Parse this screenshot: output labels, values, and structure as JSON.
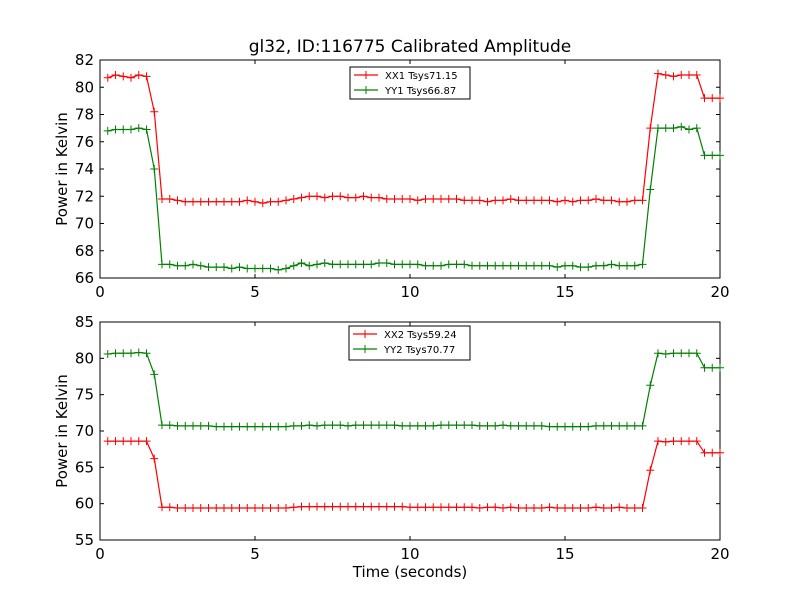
{
  "figure": {
    "title": "gl32, ID:116775 Calibrated Amplitude"
  },
  "chart_data": [
    {
      "type": "line",
      "title": "gl32, ID:116775 Calibrated Amplitude",
      "xlabel": "",
      "ylabel": "Power in Kelvin",
      "xlim": [
        0,
        20
      ],
      "ylim": [
        66,
        82
      ],
      "xticks": [
        "0",
        "5",
        "10",
        "15",
        "20"
      ],
      "yticks": [
        "66",
        "68",
        "70",
        "72",
        "74",
        "76",
        "78",
        "80",
        "82"
      ],
      "grid": false,
      "legend_position": "top-center",
      "x": [
        0.25,
        0.5,
        0.75,
        1.0,
        1.25,
        1.5,
        1.75,
        2.0,
        2.25,
        2.5,
        2.75,
        3.0,
        3.25,
        3.5,
        3.75,
        4.0,
        4.25,
        4.5,
        4.75,
        5.0,
        5.25,
        5.5,
        5.75,
        6.0,
        6.25,
        6.5,
        6.75,
        7.0,
        7.25,
        7.5,
        7.75,
        8.0,
        8.25,
        8.5,
        8.75,
        9.0,
        9.25,
        9.5,
        9.75,
        10.0,
        10.25,
        10.5,
        10.75,
        11.0,
        11.25,
        11.5,
        11.75,
        12.0,
        12.25,
        12.5,
        12.75,
        13.0,
        13.25,
        13.5,
        13.75,
        14.0,
        14.25,
        14.5,
        14.75,
        15.0,
        15.25,
        15.5,
        15.75,
        16.0,
        16.25,
        16.5,
        16.75,
        17.0,
        17.25,
        17.5,
        17.75,
        18.0,
        18.25,
        18.5,
        18.75,
        19.0,
        19.25,
        19.5,
        19.75,
        20.0
      ],
      "series": [
        {
          "name": "XX1 Tsys71.15",
          "color": "#ff0000",
          "values": [
            80.7,
            80.9,
            80.8,
            80.7,
            80.9,
            80.8,
            78.2,
            71.8,
            71.8,
            71.7,
            71.6,
            71.6,
            71.6,
            71.6,
            71.6,
            71.6,
            71.6,
            71.6,
            71.7,
            71.6,
            71.5,
            71.6,
            71.6,
            71.7,
            71.8,
            71.9,
            72.0,
            72.0,
            71.9,
            72.0,
            72.0,
            71.9,
            71.9,
            72.0,
            71.9,
            71.9,
            71.8,
            71.8,
            71.8,
            71.8,
            71.7,
            71.8,
            71.8,
            71.8,
            71.8,
            71.8,
            71.7,
            71.7,
            71.7,
            71.6,
            71.7,
            71.7,
            71.8,
            71.7,
            71.7,
            71.7,
            71.7,
            71.7,
            71.6,
            71.7,
            71.6,
            71.7,
            71.7,
            71.8,
            71.7,
            71.7,
            71.6,
            71.6,
            71.7,
            71.7,
            77.0,
            81.0,
            80.9,
            80.8,
            80.9,
            80.9,
            80.9,
            79.2,
            79.2,
            79.2
          ]
        },
        {
          "name": "YY1 Tsys66.87",
          "color": "#008000",
          "values": [
            76.8,
            76.9,
            76.9,
            76.9,
            77.0,
            76.9,
            74.0,
            67.0,
            67.0,
            66.9,
            66.9,
            67.0,
            66.9,
            66.8,
            66.8,
            66.8,
            66.7,
            66.8,
            66.7,
            66.7,
            66.7,
            66.7,
            66.6,
            66.7,
            66.9,
            67.1,
            66.9,
            67.0,
            67.1,
            67.0,
            67.0,
            67.0,
            67.0,
            67.0,
            67.0,
            67.1,
            67.1,
            67.0,
            67.0,
            67.0,
            67.0,
            66.9,
            66.9,
            66.9,
            67.0,
            67.0,
            67.0,
            66.9,
            66.9,
            66.9,
            66.9,
            66.9,
            66.9,
            66.9,
            66.9,
            66.9,
            66.9,
            66.9,
            66.8,
            66.9,
            66.9,
            66.8,
            66.8,
            66.9,
            66.9,
            67.0,
            66.9,
            66.9,
            66.9,
            67.0,
            72.5,
            77.0,
            77.0,
            77.0,
            77.1,
            76.9,
            77.0,
            75.0,
            75.0,
            75.0
          ]
        }
      ]
    },
    {
      "type": "line",
      "title": "",
      "xlabel": "Time (seconds)",
      "ylabel": "Power in Kelvin",
      "xlim": [
        0,
        20
      ],
      "ylim": [
        55,
        85
      ],
      "xticks": [
        "0",
        "5",
        "10",
        "15",
        "20"
      ],
      "yticks": [
        "55",
        "60",
        "65",
        "70",
        "75",
        "80",
        "85"
      ],
      "grid": false,
      "legend_position": "top-center",
      "x": [
        0.25,
        0.5,
        0.75,
        1.0,
        1.25,
        1.5,
        1.75,
        2.0,
        2.25,
        2.5,
        2.75,
        3.0,
        3.25,
        3.5,
        3.75,
        4.0,
        4.25,
        4.5,
        4.75,
        5.0,
        5.25,
        5.5,
        5.75,
        6.0,
        6.25,
        6.5,
        6.75,
        7.0,
        7.25,
        7.5,
        7.75,
        8.0,
        8.25,
        8.5,
        8.75,
        9.0,
        9.25,
        9.5,
        9.75,
        10.0,
        10.25,
        10.5,
        10.75,
        11.0,
        11.25,
        11.5,
        11.75,
        12.0,
        12.25,
        12.5,
        12.75,
        13.0,
        13.25,
        13.5,
        13.75,
        14.0,
        14.25,
        14.5,
        14.75,
        15.0,
        15.25,
        15.5,
        15.75,
        16.0,
        16.25,
        16.5,
        16.75,
        17.0,
        17.25,
        17.5,
        17.75,
        18.0,
        18.25,
        18.5,
        18.75,
        19.0,
        19.25,
        19.5,
        19.75,
        20.0
      ],
      "series": [
        {
          "name": "XX2 Tsys59.24",
          "color": "#ff0000",
          "values": [
            68.6,
            68.6,
            68.6,
            68.6,
            68.6,
            68.6,
            66.2,
            59.5,
            59.5,
            59.4,
            59.4,
            59.4,
            59.4,
            59.4,
            59.4,
            59.4,
            59.4,
            59.4,
            59.4,
            59.4,
            59.4,
            59.4,
            59.4,
            59.4,
            59.5,
            59.6,
            59.6,
            59.6,
            59.6,
            59.6,
            59.6,
            59.6,
            59.6,
            59.6,
            59.6,
            59.6,
            59.6,
            59.6,
            59.6,
            59.5,
            59.5,
            59.5,
            59.5,
            59.5,
            59.5,
            59.5,
            59.5,
            59.5,
            59.4,
            59.5,
            59.5,
            59.4,
            59.5,
            59.4,
            59.4,
            59.4,
            59.4,
            59.5,
            59.4,
            59.4,
            59.4,
            59.4,
            59.4,
            59.5,
            59.4,
            59.4,
            59.5,
            59.4,
            59.4,
            59.4,
            64.6,
            68.6,
            68.5,
            68.6,
            68.6,
            68.6,
            68.6,
            67.0,
            67.0,
            67.0
          ]
        },
        {
          "name": "YY2 Tsys70.77",
          "color": "#008000",
          "values": [
            80.6,
            80.7,
            80.7,
            80.7,
            80.8,
            80.7,
            77.8,
            70.8,
            70.8,
            70.7,
            70.7,
            70.7,
            70.7,
            70.7,
            70.6,
            70.6,
            70.6,
            70.6,
            70.6,
            70.6,
            70.6,
            70.6,
            70.6,
            70.6,
            70.7,
            70.7,
            70.8,
            70.7,
            70.8,
            70.8,
            70.8,
            70.7,
            70.8,
            70.8,
            70.8,
            70.8,
            70.8,
            70.8,
            70.7,
            70.7,
            70.7,
            70.7,
            70.7,
            70.8,
            70.8,
            70.8,
            70.8,
            70.8,
            70.7,
            70.7,
            70.7,
            70.8,
            70.7,
            70.7,
            70.7,
            70.7,
            70.7,
            70.6,
            70.6,
            70.6,
            70.6,
            70.6,
            70.6,
            70.7,
            70.7,
            70.7,
            70.7,
            70.7,
            70.7,
            70.7,
            76.3,
            80.7,
            80.6,
            80.7,
            80.7,
            80.7,
            80.7,
            78.7,
            78.7,
            78.7
          ]
        }
      ]
    }
  ]
}
